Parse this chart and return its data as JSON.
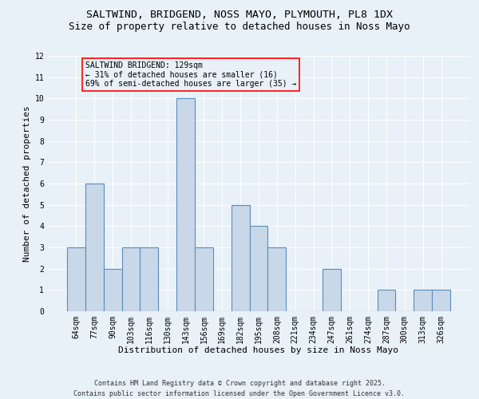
{
  "title_line1": "SALTWIND, BRIDGEND, NOSS MAYO, PLYMOUTH, PL8 1DX",
  "title_line2": "Size of property relative to detached houses in Noss Mayo",
  "categories": [
    "64sqm",
    "77sqm",
    "90sqm",
    "103sqm",
    "116sqm",
    "130sqm",
    "143sqm",
    "156sqm",
    "169sqm",
    "182sqm",
    "195sqm",
    "208sqm",
    "221sqm",
    "234sqm",
    "247sqm",
    "261sqm",
    "274sqm",
    "287sqm",
    "300sqm",
    "313sqm",
    "326sqm"
  ],
  "values": [
    3,
    6,
    2,
    3,
    3,
    0,
    10,
    3,
    0,
    5,
    4,
    3,
    0,
    0,
    2,
    0,
    0,
    1,
    0,
    1,
    1
  ],
  "bar_color": "#c8d8e8",
  "bar_edge_color": "#5b8db8",
  "xlabel": "Distribution of detached houses by size in Noss Mayo",
  "ylabel": "Number of detached properties",
  "ylim": [
    0,
    12
  ],
  "yticks": [
    0,
    1,
    2,
    3,
    4,
    5,
    6,
    7,
    8,
    9,
    10,
    11,
    12
  ],
  "background_color": "#e8f0f8",
  "annotation_text": "SALTWIND BRIDGEND: 129sqm\n← 31% of detached houses are smaller (16)\n69% of semi-detached houses are larger (35) →",
  "footer_line1": "Contains HM Land Registry data © Crown copyright and database right 2025.",
  "footer_line2": "Contains public sector information licensed under the Open Government Licence v3.0.",
  "grid_color": "#ffffff",
  "title_fontsize": 9.5,
  "subtitle_fontsize": 9,
  "axis_label_fontsize": 8,
  "tick_fontsize": 7,
  "annotation_fontsize": 7,
  "footer_fontsize": 6
}
